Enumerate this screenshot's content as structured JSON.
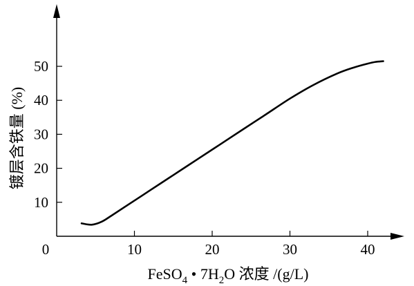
{
  "chart_data": {
    "type": "line",
    "title": "",
    "xlabel": {
      "prefix": "FeSO",
      "sub1": "4",
      "middle": " • 7H",
      "sub2": "2",
      "suffix": "O 浓度 /(g/L)"
    },
    "ylabel": "镀层含铁量 (%)",
    "origin_label": "0",
    "xlim": [
      0,
      50
    ],
    "ylim": [
      0,
      60
    ],
    "x_ticks": [
      10,
      20,
      30,
      40
    ],
    "x_tick_labels": [
      "10",
      "20",
      "30",
      "40"
    ],
    "y_ticks": [
      10,
      20,
      30,
      40,
      50
    ],
    "y_tick_labels": [
      "10",
      "20",
      "30",
      "40",
      "50"
    ],
    "grid": false,
    "series": [
      {
        "x": [
          3.2,
          4.5,
          5.8,
          7,
          9,
          12,
          15,
          18,
          21,
          24,
          27,
          30,
          33,
          36,
          38,
          40,
          41,
          42
        ],
        "y": [
          3.8,
          3.4,
          4.3,
          6.0,
          9.0,
          13.5,
          18.0,
          22.5,
          27.0,
          31.5,
          36.0,
          40.5,
          44.5,
          47.8,
          49.5,
          50.8,
          51.3,
          51.5
        ]
      }
    ]
  }
}
